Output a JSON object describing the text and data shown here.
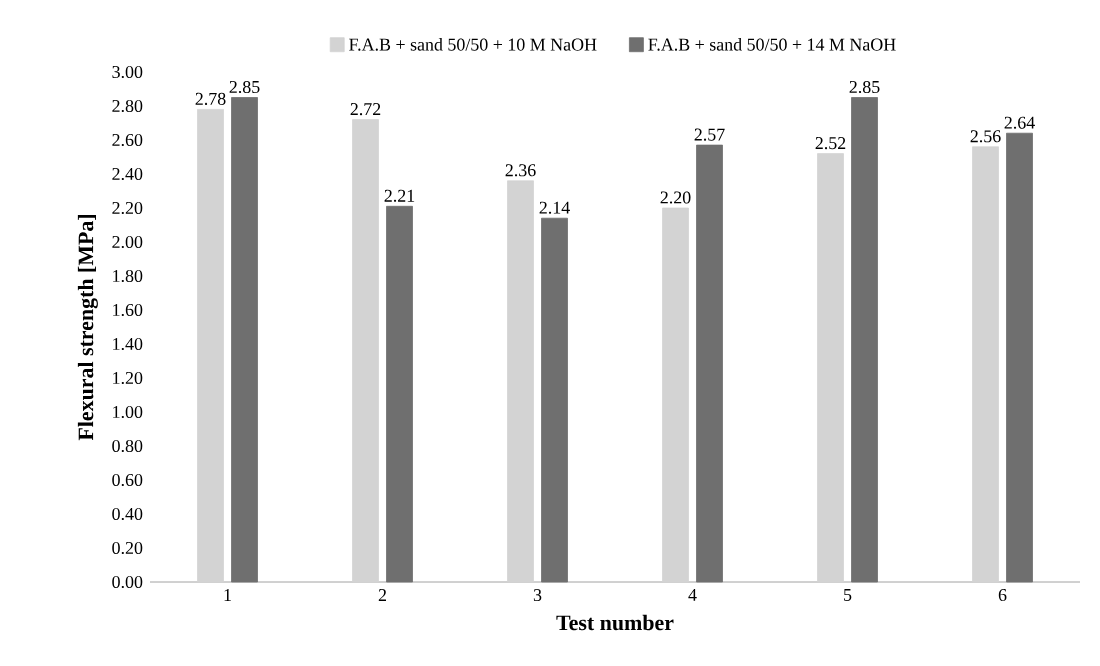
{
  "chart_data": {
    "type": "bar",
    "xlabel": "Test number",
    "ylabel": "Flexural strength [MPa]",
    "categories": [
      "1",
      "2",
      "3",
      "4",
      "5",
      "6"
    ],
    "series": [
      {
        "name": "F.A.B + sand 50/50 + 10 M NaOH",
        "color": "#d3d3d3",
        "values": [
          2.78,
          2.72,
          2.36,
          2.2,
          2.52,
          2.56
        ],
        "value_labels": [
          "2.78",
          "2.72",
          "2.36",
          "2.20",
          "2.52",
          "2.56"
        ]
      },
      {
        "name": "F.A.B + sand 50/50 + 14 M NaOH",
        "color": "#6f6f6f",
        "values": [
          2.85,
          2.21,
          2.14,
          2.57,
          2.85,
          2.64
        ],
        "value_labels": [
          "2.85",
          "2.21",
          "2.14",
          "2.57",
          "2.85",
          "2.64"
        ]
      }
    ],
    "ylim": [
      0,
      3
    ],
    "yticks": [
      {
        "value": 0,
        "label": "0.00"
      },
      {
        "value": 0.2,
        "label": "0.20"
      },
      {
        "value": 0.4,
        "label": "0.40"
      },
      {
        "value": 0.6,
        "label": "0.60"
      },
      {
        "value": 0.8,
        "label": "0.80"
      },
      {
        "value": 1,
        "label": "1.00"
      },
      {
        "value": 1.2,
        "label": "1.20"
      },
      {
        "value": 1.4,
        "label": "1.40"
      },
      {
        "value": 1.6,
        "label": "1.60"
      },
      {
        "value": 1.8,
        "label": "1.80"
      },
      {
        "value": 2,
        "label": "2.00"
      },
      {
        "value": 2.2,
        "label": "2.20"
      },
      {
        "value": 2.4,
        "label": "2.40"
      },
      {
        "value": 2.6,
        "label": "2.60"
      },
      {
        "value": 2.8,
        "label": "2.80"
      },
      {
        "value": 3,
        "label": "3.00"
      }
    ],
    "legend": "top",
    "grid": false
  }
}
